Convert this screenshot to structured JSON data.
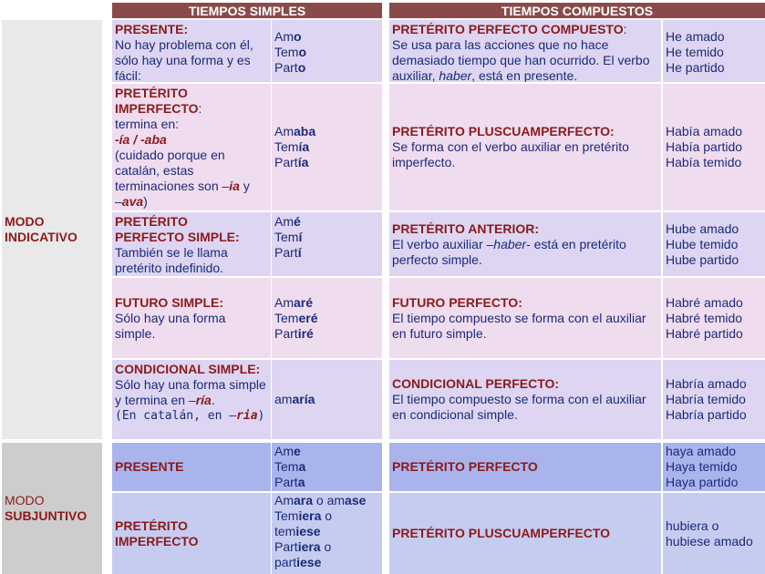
{
  "headers": {
    "simple": "TIEMPOS SIMPLES",
    "compound": "TIEMPOS COMPUESTOS"
  },
  "moods": {
    "indicativo": [
      "MODO",
      "INDICATIVO"
    ],
    "subjuntivo": [
      "MODO",
      "SUBJUNTIVO"
    ]
  },
  "colors": {
    "header_bg": "#8b4a4a",
    "title_text": "#8b1a1a",
    "body_text": "#1a2a7a",
    "indicative_row_a": "#ddd5f1",
    "indicative_row_b": "#f0dcef",
    "subjunctive_row_a": "#aab4ec",
    "subjunctive_row_b": "#c6ccf0"
  },
  "rows": [
    {
      "simple_title": "PRESENTE:",
      "simple_desc": [
        "No hay problema con él,",
        "sólo hay una forma y es",
        "fácil:"
      ],
      "simple_forms": [
        [
          "Am",
          "o"
        ],
        [
          "Tem",
          "o"
        ],
        [
          "Part",
          "o"
        ]
      ],
      "comp_title": "PRETÉRITO PERFECTO COMPUESTO",
      "comp_title_suffix": ":",
      "comp_desc": [
        "Se usa para las acciones que no hace",
        "demasiado tiempo que han ocurrido. El verbo"
      ],
      "comp_desc_last": [
        "auxiliar, ",
        "haber",
        ", está en presente."
      ],
      "comp_forms": [
        "He amado",
        "He temido",
        "He partido"
      ]
    },
    {
      "simple_title": [
        "PRETÉRITO",
        "IMPERFECTO"
      ],
      "simple_title_suffix": ":",
      "simple_desc": [
        "termina en:"
      ],
      "simple_ending": "-ía / -aba",
      "simple_note": [
        "(cuidado porque en",
        "catalán, estas"
      ],
      "simple_note_last": [
        "terminaciones son –",
        "ia",
        " y"
      ],
      "simple_note_end": [
        "–",
        "ava",
        ")"
      ],
      "simple_forms": [
        [
          "Am",
          "aba"
        ],
        [
          "Tem",
          "ía"
        ],
        [
          "Part",
          "ía"
        ]
      ],
      "comp_title": "PRETÉRITO PLUSCUAMPERFECTO:",
      "comp_desc": [
        "Se forma con el verbo auxiliar en pretérito",
        "imperfecto."
      ],
      "comp_forms": [
        "Había amado",
        "Había partido",
        "Había temido"
      ]
    },
    {
      "simple_title": [
        "PRETÉRITO",
        "PERFECTO SIMPLE:"
      ],
      "simple_desc": [
        "También se le llama",
        "pretérito indefinido."
      ],
      "simple_forms": [
        [
          "Am",
          "é"
        ],
        [
          "Tem",
          "í"
        ],
        [
          "Part",
          "í"
        ]
      ],
      "comp_title": "PRETÉRITO ANTERIOR:",
      "comp_desc_first": [
        "El verbo auxiliar –",
        "haber",
        "- está en pretérito"
      ],
      "comp_desc": [
        "perfecto simple."
      ],
      "comp_forms": [
        "Hube amado",
        "Hube temido",
        "Hube partido"
      ]
    },
    {
      "simple_title": "FUTURO SIMPLE:",
      "simple_desc": [
        "Sólo hay una forma",
        "simple."
      ],
      "simple_forms": [
        [
          "Am",
          "aré"
        ],
        [
          "Tem",
          "eré"
        ],
        [
          "Part",
          "iré"
        ]
      ],
      "comp_title": "FUTURO PERFECTO:",
      "comp_desc": [
        "El tiempo compuesto se forma con el auxiliar",
        "en futuro simple."
      ],
      "comp_forms": [
        "Habré amado",
        "Habré temido",
        "Habré partido"
      ]
    },
    {
      "simple_title": "CONDICIONAL SIMPLE:",
      "simple_desc": [
        "Sólo hay una forma simple"
      ],
      "simple_desc2": [
        "y termina en –",
        "ría",
        "."
      ],
      "simple_desc3": [
        "(En catalán, en –",
        "ria",
        ")"
      ],
      "simple_forms": [
        [
          "am",
          "aría"
        ]
      ],
      "comp_title": "CONDICIONAL PERFECTO:",
      "comp_desc": [
        "El tiempo compuesto se forma con el auxiliar",
        "en condicional simple."
      ],
      "comp_forms": [
        "Habría amado",
        "Habría temido",
        "Habría partido"
      ]
    },
    {
      "simple_title": "PRESENTE",
      "simple_forms": [
        [
          "Am",
          "e"
        ],
        [
          "Tem",
          "a"
        ],
        [
          "Part",
          "a"
        ]
      ],
      "comp_title": "PRETÉRITO PERFECTO",
      "comp_forms": [
        "haya amado",
        "Haya temido",
        "Haya partido"
      ]
    },
    {
      "simple_title": [
        "PRETÉRITO",
        "IMPERFECTO"
      ],
      "simple_forms_long": [
        [
          "Am",
          "ara",
          " o am",
          "ase"
        ],
        [
          "Tem",
          "iera",
          " o"
        ],
        [
          "tem",
          "iese"
        ],
        [
          "Part",
          "iera",
          " o"
        ],
        [
          "part",
          "iese"
        ]
      ],
      "comp_title": "PRETÉRITO PLUSCUAMPERFECTO",
      "comp_forms": [
        "hubiera o",
        "hubiese amado"
      ]
    }
  ]
}
